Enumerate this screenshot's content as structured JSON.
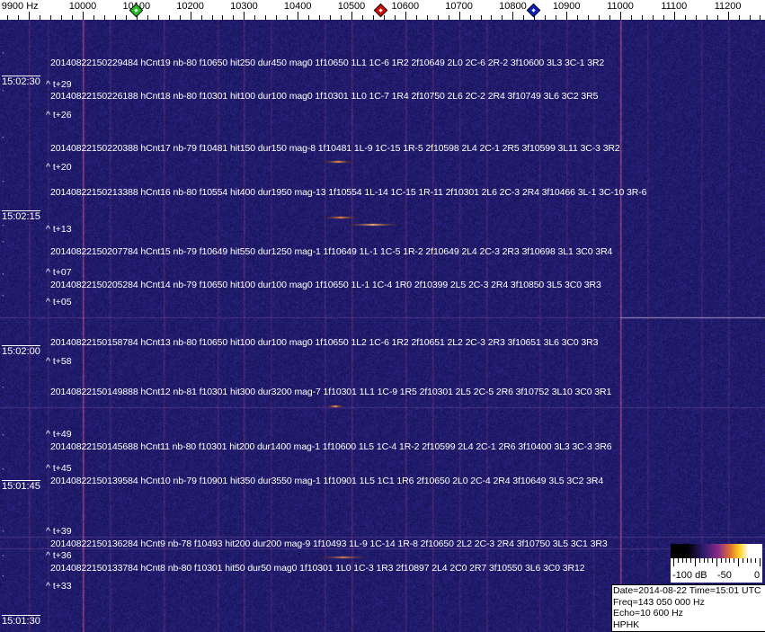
{
  "frequency_scale": {
    "labels": [
      "9900 Hz",
      "10000",
      "10100",
      "10200",
      "10300",
      "10400",
      "10500",
      "10600",
      "10700",
      "10800",
      "10900",
      "11000",
      "11100",
      "11200"
    ],
    "markers": [
      {
        "name": "green-marker",
        "freq": 10100,
        "color": "#22c022"
      },
      {
        "name": "red-marker",
        "freq": 10555,
        "color": "#d01010"
      },
      {
        "name": "blue-marker",
        "freq": 10840,
        "color": "#1020c0"
      }
    ]
  },
  "detections": [
    "20140822150229484 hCnt19 nb-80 f10650 hit250 dur450 mag0 1f10650 1L1 1C-6 1R2 2f10649 2L0 2C-6 2R-2 3f10600 3L3 3C-1 3R2",
    "20140822150226188 hCnt18 nb-80 f10301 hit100 dur100 mag0 1f10301 1L0 1C-7 1R4 2f10750 2L6 2C-2 2R4 3f10749 3L6 3C2 3R5",
    "20140822150220388 hCnt17 nb-79 f10481 hit150 dur150 mag-8 1f10481 1L-9 1C-15 1R-5 2f10598 2L4 2C-1 2R5 3f10599 3L11 3C-3 3R2",
    "20140822150213388 hCnt16 nb-80 f10554 hit400 dur1950 mag-13 1f10554 1L-14 1C-15 1R-11 2f10301 2L6 2C-3 2R4 3f10466 3L-1 3C-10 3R-6",
    "20140822150207784 hCnt15 nb-79 f10649 hit550 dur1250 mag-1 1f10649 1L-1 1C-5 1R-2 2f10649 2L4 2C-3 2R3 3f10698 3L1 3C0 3R4",
    "20140822150205284 hCnt14 nb-79 f10650 hit100 dur100 mag0 1f10650 1L-1 1C-4 1R0 2f10399 2L5 2C-3 2R4 3f10850 3L5 3C0 3R3",
    "20140822150158784 hCnt13 nb-80 f10650 hit100 dur100 mag0 1f10650 1L2 1C-6 1R2 2f10651 2L2 2C-3 2R3 3f10651 3L6 3C0 3R3",
    "20140822150149888 hCnt12 nb-81 f10301 hit300 dur3200 mag-7 1f10301 1L1 1C-9 1R5 2f10301 2L5 2C-5 2R6 3f10752 3L10 3C0 3R1",
    "20140822150145688 hCnt11 nb-80 f10301 hit200 dur1400 mag-1 1f10600 1L5 1C-4 1R-2 2f10599 2L4 2C-1 2R6 3f10400 3L3 3C-3 3R6",
    "20140822150139584 hCnt10 nb-79 f10901 hit350 dur3550 mag-1 1f10901 1L5 1C1 1R6 2f10650 2L0 2C-4 2R4 3f10649 3L5 3C2 3R4",
    "20140822150136284 hCnt9 nb-78 f10493 hit200 dur200 mag-9 1f10493 1L-9 1C-14 1R-8 2f10650 2L2 2C-3 2R4 3f10750 3L5 3C1 3R3",
    "20140822150133784 hCnt8 nb-80 f10301 hit50 dur50 mag0 1f10301 1L0 1C-3 1R3 2f10897 2L4 2C0 2R7 3f10550 3L6 3C0 3R12"
  ],
  "offsets": [
    "^ t+29",
    "^ t+26",
    "^ t+20",
    "^ t+13",
    "^ t+07",
    "^ t+05",
    "^ t+58",
    "^ t+49",
    "^ t+45",
    "^ t+39",
    "^ t+36",
    "^ t+33"
  ],
  "times": [
    "15:02:30",
    "15:02:15",
    "15:02:00",
    "15:01:45",
    "15:01:30"
  ],
  "colorbar": {
    "labels": [
      "-100 dB",
      "-50",
      "0"
    ]
  },
  "info": {
    "date_line": "Date=2014-08-22 Time=15:01 UTC",
    "freq_line": "Freq=143 050 000 Hz",
    "echo_line": "Echo=10 600 Hz",
    "station": "HPHK"
  },
  "colors": {
    "background": "#1c1a6e",
    "carrier": "#c04070",
    "echo": "#ff9040"
  }
}
